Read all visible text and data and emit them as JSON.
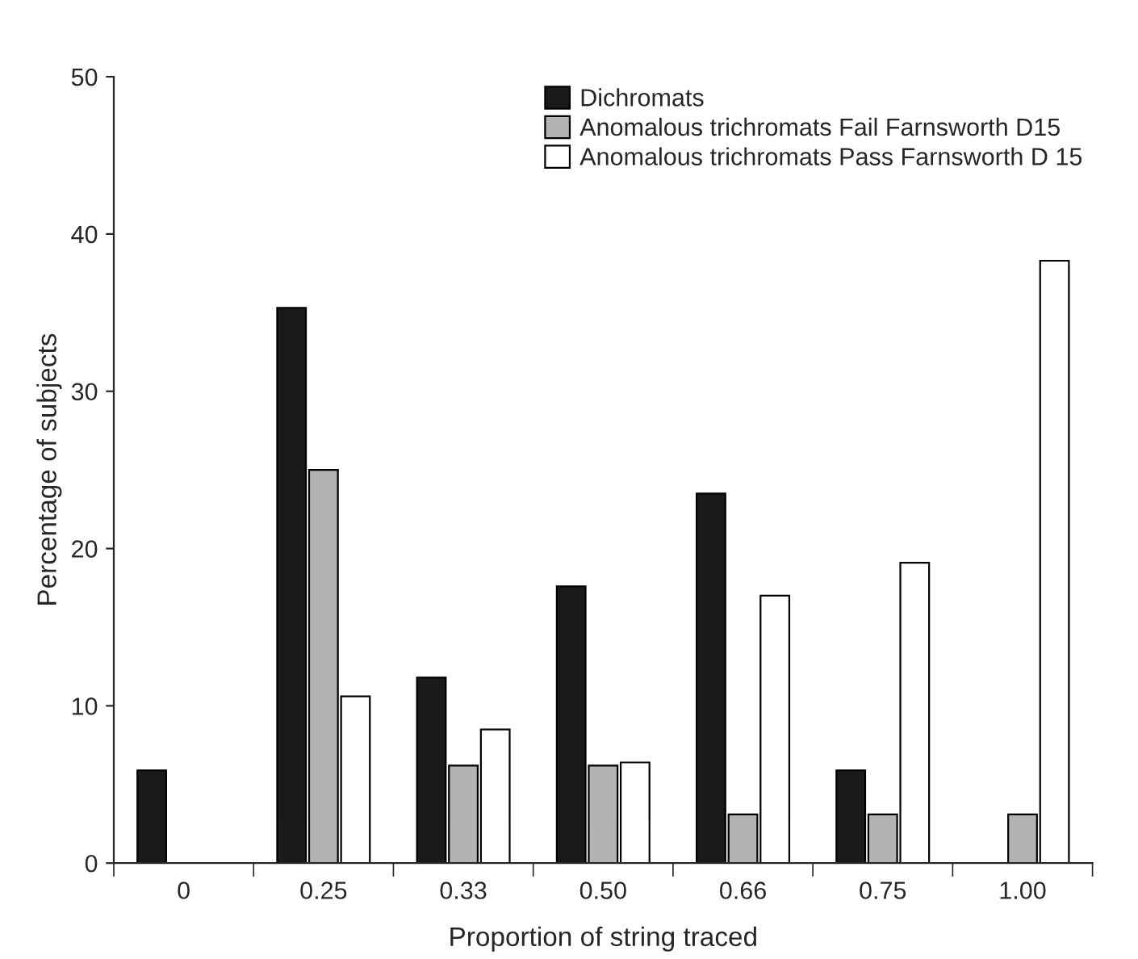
{
  "chart_data": {
    "type": "bar",
    "xlabel": "Proportion of string traced",
    "ylabel": "Percentage of subjects",
    "categories": [
      "0",
      "0.25",
      "0.33",
      "0.50",
      "0.66",
      "0.75",
      "1.00"
    ],
    "series": [
      {
        "name": "Dichromats",
        "color": "#1a1a1a",
        "values": [
          5.9,
          35.3,
          11.8,
          17.6,
          23.5,
          5.9,
          null
        ]
      },
      {
        "name": "Anomalous trichromats Fail Farnsworth D15",
        "color": "#b3b3b3",
        "values": [
          null,
          25,
          6.2,
          6.2,
          3.1,
          3.1,
          3.1
        ]
      },
      {
        "name": "Anomalous trichromats Pass Farnsworth D 15",
        "color": "#ffffff",
        "values": [
          null,
          10.6,
          8.5,
          6.4,
          17,
          19.1,
          38.3
        ]
      }
    ],
    "ylim": [
      0,
      50
    ],
    "yticks": [
      0,
      10,
      20,
      30,
      40,
      50
    ],
    "grid": false,
    "legend": "top right"
  }
}
